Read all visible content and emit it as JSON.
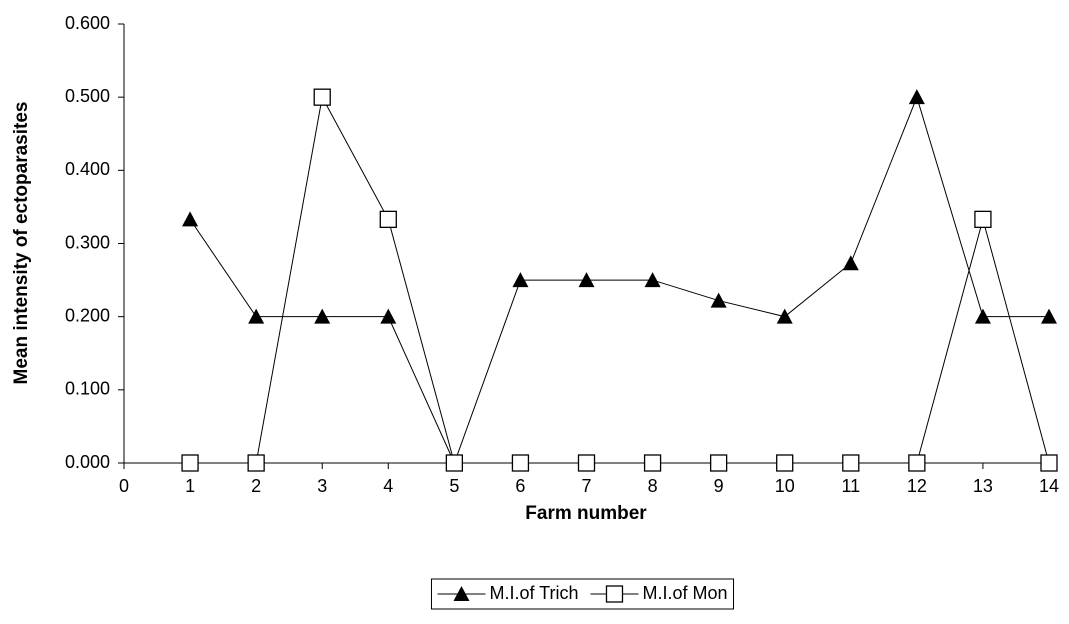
{
  "chart_data": {
    "type": "line",
    "x_label": "Farm number",
    "y_label": "Mean intensity of ectoparasites",
    "x": [
      1,
      2,
      3,
      4,
      5,
      6,
      7,
      8,
      9,
      10,
      11,
      12,
      13,
      14
    ],
    "xlim": [
      0,
      14
    ],
    "xticks": [
      0,
      1,
      2,
      3,
      4,
      5,
      6,
      7,
      8,
      9,
      10,
      11,
      12,
      13,
      14
    ],
    "ylim": [
      0,
      0.6
    ],
    "yticks": [
      {
        "value": 0,
        "label": "0.000"
      },
      {
        "value": 0.1,
        "label": "0.100"
      },
      {
        "value": 0.2,
        "label": "0.200"
      },
      {
        "value": 0.3,
        "label": "0.300"
      },
      {
        "value": 0.4,
        "label": "0.400"
      },
      {
        "value": 0.5,
        "label": "0.500"
      },
      {
        "value": 0.6,
        "label": "0.600"
      }
    ],
    "legend": "bottom",
    "series": [
      {
        "name": "M.I.of Trich",
        "color": "#000000",
        "marker": "triangle",
        "values": [
          0.333,
          0.2,
          0.2,
          0.2,
          0,
          0.25,
          0.25,
          0.25,
          0.222,
          0.2,
          0.273,
          0.5,
          0.2,
          0.2
        ]
      },
      {
        "name": "M.I.of Mon",
        "color": "#000000",
        "marker": "square-open",
        "values": [
          0,
          0,
          0.5,
          0.333,
          0,
          0,
          0,
          0,
          0,
          0,
          0,
          0,
          0.333,
          0
        ]
      }
    ]
  }
}
